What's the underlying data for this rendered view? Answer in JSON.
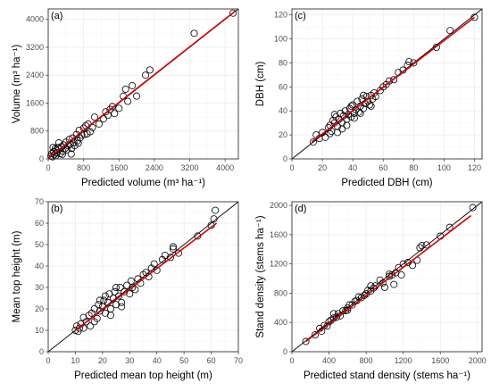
{
  "chart_data": [
    {
      "type": "scatter",
      "panel_label": "(a)",
      "xlabel": "Predicted volume (m³ ha⁻¹)",
      "ylabel": "Volume (m³ ha⁻¹)",
      "xlim": [
        0,
        4300
      ],
      "ylim": [
        0,
        4300
      ],
      "x_ticks": [
        0,
        800,
        1600,
        2400,
        3200,
        4000
      ],
      "y_ticks": [
        0,
        800,
        1600,
        2400,
        3200,
        4000
      ],
      "reference_line": "1:1",
      "fit_line": {
        "color": "#d40000",
        "from": [
          0,
          20
        ],
        "to": [
          4220,
          4230
        ]
      },
      "points": [
        [
          60,
          80
        ],
        [
          80,
          150
        ],
        [
          100,
          60
        ],
        [
          120,
          200
        ],
        [
          140,
          120
        ],
        [
          160,
          300
        ],
        [
          180,
          250
        ],
        [
          200,
          180
        ],
        [
          220,
          330
        ],
        [
          250,
          280
        ],
        [
          270,
          150
        ],
        [
          300,
          350
        ],
        [
          330,
          220
        ],
        [
          350,
          400
        ],
        [
          380,
          300
        ],
        [
          400,
          480
        ],
        [
          420,
          260
        ],
        [
          450,
          380
        ],
        [
          480,
          560
        ],
        [
          500,
          420
        ],
        [
          530,
          300
        ],
        [
          550,
          600
        ],
        [
          580,
          470
        ],
        [
          600,
          380
        ],
        [
          640,
          700
        ],
        [
          660,
          520
        ],
        [
          700,
          820
        ],
        [
          720,
          600
        ],
        [
          760,
          680
        ],
        [
          800,
          880
        ],
        [
          820,
          700
        ],
        [
          850,
          950
        ],
        [
          880,
          720
        ],
        [
          900,
          1000
        ],
        [
          950,
          780
        ],
        [
          1000,
          900
        ],
        [
          1050,
          1200
        ],
        [
          1150,
          1000
        ],
        [
          1250,
          1150
        ],
        [
          1300,
          1350
        ],
        [
          1350,
          1250
        ],
        [
          1400,
          1420
        ],
        [
          1450,
          1500
        ],
        [
          1500,
          1300
        ],
        [
          1600,
          1450
        ],
        [
          1700,
          1800
        ],
        [
          1750,
          2000
        ],
        [
          1800,
          1650
        ],
        [
          1900,
          2100
        ],
        [
          2000,
          1800
        ],
        [
          2200,
          2400
        ],
        [
          2300,
          2550
        ],
        [
          3300,
          3600
        ],
        [
          4180,
          4180
        ],
        [
          110,
          330
        ],
        [
          170,
          90
        ],
        [
          240,
          460
        ],
        [
          320,
          130
        ],
        [
          520,
          140
        ],
        [
          680,
          450
        ]
      ]
    },
    {
      "type": "scatter",
      "panel_label": "(c)",
      "xlabel": "Predicted DBH (cm)",
      "ylabel": "DBH (cm)",
      "xlim": [
        0,
        125
      ],
      "ylim": [
        0,
        125
      ],
      "x_ticks": [
        0,
        20,
        40,
        60,
        80,
        100,
        120
      ],
      "y_ticks": [
        0,
        20,
        40,
        60,
        80,
        100,
        120
      ],
      "reference_line": "1:1",
      "fit_line": {
        "color": "#d40000",
        "from": [
          13,
          14
        ],
        "to": [
          120,
          118
        ]
      },
      "points": [
        [
          14,
          14
        ],
        [
          16,
          20
        ],
        [
          18,
          17
        ],
        [
          20,
          22
        ],
        [
          22,
          18
        ],
        [
          24,
          26
        ],
        [
          25,
          28
        ],
        [
          26,
          23
        ],
        [
          27,
          32
        ],
        [
          28,
          30
        ],
        [
          29,
          35
        ],
        [
          30,
          27
        ],
        [
          31,
          33
        ],
        [
          32,
          38
        ],
        [
          33,
          30
        ],
        [
          34,
          36
        ],
        [
          35,
          40
        ],
        [
          36,
          33
        ],
        [
          37,
          37
        ],
        [
          38,
          42
        ],
        [
          39,
          35
        ],
        [
          40,
          45
        ],
        [
          41,
          38
        ],
        [
          42,
          41
        ],
        [
          43,
          48
        ],
        [
          44,
          39
        ],
        [
          45,
          44
        ],
        [
          46,
          50
        ],
        [
          47,
          42
        ],
        [
          48,
          46
        ],
        [
          49,
          52
        ],
        [
          50,
          48
        ],
        [
          51,
          45
        ],
        [
          52,
          53
        ],
        [
          53,
          50
        ],
        [
          54,
          55
        ],
        [
          55,
          52
        ],
        [
          58,
          57
        ],
        [
          60,
          60
        ],
        [
          62,
          62
        ],
        [
          64,
          65
        ],
        [
          67,
          66
        ],
        [
          70,
          72
        ],
        [
          73,
          74
        ],
        [
          76,
          78
        ],
        [
          77,
          81
        ],
        [
          80,
          80
        ],
        [
          95,
          93
        ],
        [
          104,
          107
        ],
        [
          120,
          118
        ],
        [
          30,
          22
        ],
        [
          33,
          25
        ],
        [
          36,
          28
        ],
        [
          39,
          44
        ],
        [
          41,
          34
        ],
        [
          45,
          38
        ],
        [
          28,
          37
        ],
        [
          25,
          21
        ],
        [
          47,
          53
        ],
        [
          52,
          44
        ]
      ]
    },
    {
      "type": "scatter",
      "panel_label": "(b)",
      "xlabel": "Predicted mean top height (m)",
      "ylabel": "Mean top height (m)",
      "xlim": [
        0,
        70
      ],
      "ylim": [
        0,
        70
      ],
      "x_ticks": [
        0,
        10,
        20,
        30,
        40,
        50,
        60,
        70
      ],
      "y_ticks": [
        0,
        10,
        20,
        30,
        40,
        50,
        60,
        70
      ],
      "reference_line": "1:1",
      "fit_line": {
        "color": "#d40000",
        "from": [
          10,
          10
        ],
        "to": [
          62,
          60
        ]
      },
      "points": [
        [
          10,
          10
        ],
        [
          10.5,
          12
        ],
        [
          11,
          9.5
        ],
        [
          11.5,
          11
        ],
        [
          12,
          13
        ],
        [
          13,
          16
        ],
        [
          14,
          14
        ],
        [
          15,
          17
        ],
        [
          15.5,
          12
        ],
        [
          16,
          18
        ],
        [
          17,
          20
        ],
        [
          18,
          15.5
        ],
        [
          18.5,
          22
        ],
        [
          19,
          19
        ],
        [
          20,
          21
        ],
        [
          20.5,
          24
        ],
        [
          21,
          18
        ],
        [
          22,
          23
        ],
        [
          22.5,
          27
        ],
        [
          23,
          20
        ],
        [
          24,
          25
        ],
        [
          24.5,
          28
        ],
        [
          25,
          22
        ],
        [
          26,
          26
        ],
        [
          26.5,
          30
        ],
        [
          27,
          23
        ],
        [
          28,
          28
        ],
        [
          29,
          31
        ],
        [
          30,
          27
        ],
        [
          30.5,
          33
        ],
        [
          31,
          30
        ],
        [
          32,
          29
        ],
        [
          33,
          34
        ],
        [
          34,
          32
        ],
        [
          35,
          36
        ],
        [
          36,
          37
        ],
        [
          37,
          35
        ],
        [
          38,
          39
        ],
        [
          39,
          41
        ],
        [
          40,
          38
        ],
        [
          42,
          43
        ],
        [
          43,
          45
        ],
        [
          45,
          44
        ],
        [
          46,
          48
        ],
        [
          46,
          49
        ],
        [
          48,
          46
        ],
        [
          55,
          54
        ],
        [
          60,
          59
        ],
        [
          61,
          62
        ],
        [
          61.5,
          66
        ],
        [
          21,
          26
        ],
        [
          23,
          17
        ],
        [
          25,
          30
        ],
        [
          27,
          21
        ],
        [
          19,
          24
        ],
        [
          17,
          14
        ],
        [
          13,
          11
        ]
      ]
    },
    {
      "type": "scatter",
      "panel_label": "(d)",
      "xlabel": "Predicted stand density (stems ha⁻¹)",
      "ylabel": "Stand density (stems ha⁻¹)",
      "xlim": [
        0,
        2050
      ],
      "ylim": [
        0,
        2050
      ],
      "x_ticks": [
        0,
        400,
        800,
        1200,
        1600,
        2000
      ],
      "y_ticks": [
        0,
        400,
        800,
        1200,
        1600,
        2000
      ],
      "reference_line": "1:1",
      "fit_line": {
        "color": "#d40000",
        "from": [
          150,
          140
        ],
        "to": [
          1930,
          1860
        ]
      },
      "points": [
        [
          150,
          140
        ],
        [
          250,
          230
        ],
        [
          300,
          320
        ],
        [
          320,
          280
        ],
        [
          350,
          360
        ],
        [
          380,
          350
        ],
        [
          400,
          410
        ],
        [
          420,
          430
        ],
        [
          450,
          460
        ],
        [
          480,
          470
        ],
        [
          500,
          520
        ],
        [
          520,
          490
        ],
        [
          550,
          560
        ],
        [
          580,
          560
        ],
        [
          600,
          600
        ],
        [
          620,
          640
        ],
        [
          650,
          640
        ],
        [
          680,
          690
        ],
        [
          700,
          700
        ],
        [
          720,
          750
        ],
        [
          750,
          740
        ],
        [
          780,
          770
        ],
        [
          800,
          790
        ],
        [
          820,
          840
        ],
        [
          850,
          830
        ],
        [
          880,
          870
        ],
        [
          900,
          900
        ],
        [
          950,
          980
        ],
        [
          980,
          940
        ],
        [
          1000,
          880
        ],
        [
          1050,
          1060
        ],
        [
          1080,
          1050
        ],
        [
          1100,
          920
        ],
        [
          1120,
          1080
        ],
        [
          1150,
          1150
        ],
        [
          1180,
          1050
        ],
        [
          1200,
          1200
        ],
        [
          1250,
          1220
        ],
        [
          1300,
          1180
        ],
        [
          1350,
          1250
        ],
        [
          1380,
          1420
        ],
        [
          1400,
          1450
        ],
        [
          1450,
          1460
        ],
        [
          1600,
          1580
        ],
        [
          1700,
          1700
        ],
        [
          1950,
          1970
        ],
        [
          450,
          520
        ],
        [
          600,
          570
        ],
        [
          850,
          900
        ],
        [
          1050,
          1030
        ]
      ]
    }
  ]
}
